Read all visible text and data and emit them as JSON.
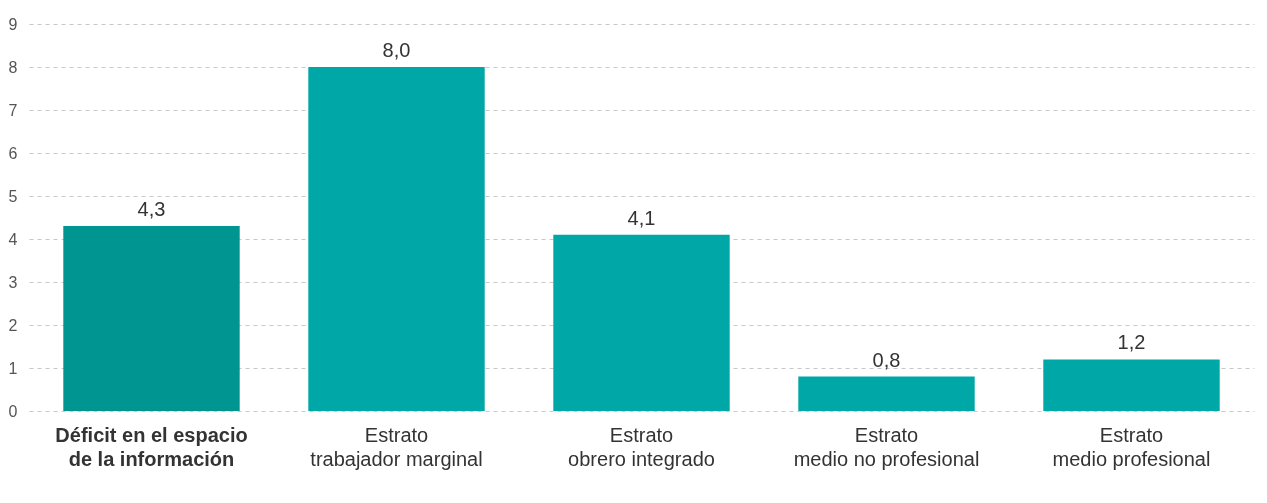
{
  "chart_data": {
    "type": "bar",
    "categories": [
      "Déficit en el espacio\nde la información",
      "Estrato\ntrabajador marginal",
      "Estrato\nobrero integrado",
      "Estrato\nmedio no profesional",
      "Estrato\nmedio profesional"
    ],
    "values": [
      4.3,
      8.0,
      4.1,
      0.8,
      1.2
    ],
    "colors": [
      "#009591",
      "#00a7a7",
      "#00a7a7",
      "#00a7a7",
      "#00a7a7"
    ],
    "value_labels": [
      "4,3",
      "8,0",
      "4,1",
      "0,8",
      "1,2"
    ],
    "ylim": [
      0,
      9
    ],
    "yticks": [
      0,
      1,
      2,
      3,
      4,
      5,
      6,
      7,
      8,
      9
    ],
    "grid": "y"
  }
}
